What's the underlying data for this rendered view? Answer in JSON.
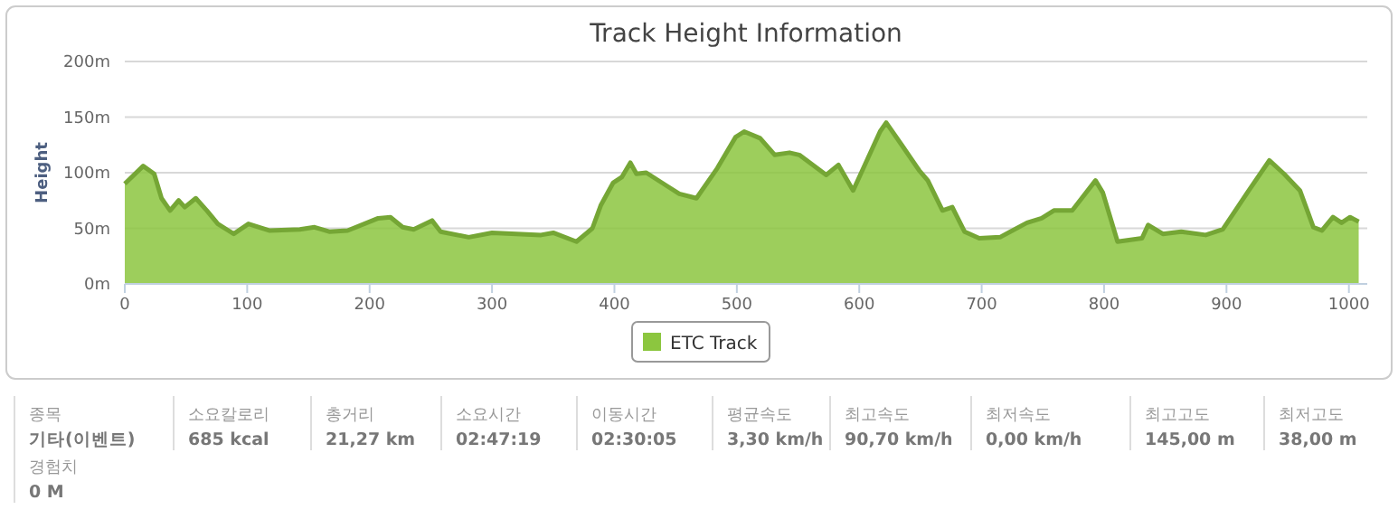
{
  "chart_data": [
    {
      "type": "area",
      "title": "Track Height Information",
      "ylabel": "Height",
      "legend": "bottom",
      "grid": "y",
      "xlim": [
        0,
        1015
      ],
      "xticks": [
        0,
        100,
        200,
        300,
        400,
        500,
        600,
        700,
        800,
        900,
        1000
      ],
      "ylim": [
        0,
        200
      ],
      "yticks": [
        {
          "value": 0,
          "label": "0m"
        },
        {
          "value": 50,
          "label": "50m"
        },
        {
          "value": 100,
          "label": "100m"
        },
        {
          "value": 150,
          "label": "150m"
        },
        {
          "value": 200,
          "label": "200m"
        }
      ],
      "series": [
        {
          "name": "ETC Track",
          "color": "#8cc63f",
          "x": [
            0,
            15,
            24,
            30,
            37,
            44,
            49,
            58,
            67,
            76,
            89,
            101,
            118,
            143,
            155,
            167,
            182,
            207,
            217,
            227,
            236,
            251,
            258,
            281,
            300,
            340,
            350,
            369,
            382,
            389,
            399,
            406,
            413,
            418,
            426,
            443,
            453,
            467,
            484,
            499,
            506,
            519,
            531,
            543,
            551,
            573,
            583,
            595,
            617,
            622,
            634,
            649,
            656,
            668,
            676,
            686,
            698,
            715,
            737,
            749,
            759,
            774,
            793,
            799,
            811,
            831,
            836,
            848,
            863,
            883,
            897,
            917,
            935,
            947,
            960,
            971,
            978,
            987,
            994,
            1001,
            1008
          ],
          "values": [
            90,
            106,
            99,
            77,
            66,
            75,
            69,
            77,
            66,
            54,
            45,
            54,
            48,
            49,
            51,
            47,
            48,
            59,
            60,
            51,
            49,
            57,
            47,
            42,
            46,
            44,
            46,
            38,
            50,
            71,
            91,
            96,
            109,
            99,
            100,
            88,
            81,
            77,
            104,
            132,
            137,
            131,
            116,
            118,
            116,
            98,
            107,
            84,
            137,
            145,
            126,
            102,
            93,
            66,
            69,
            47,
            41,
            42,
            55,
            59,
            66,
            66,
            93,
            82,
            38,
            41,
            53,
            45,
            47,
            44,
            49,
            82,
            111,
            99,
            84,
            51,
            48,
            60,
            55,
            60,
            56
          ]
        }
      ]
    },
    {
      "type": "other",
      "annotations": [
        "종목",
        "기타(이벤트)",
        "소요칼로리",
        "685 kcal",
        "총거리",
        "21,27 km",
        "소요시간",
        "02:47:19",
        "이동시간",
        "02:30:05",
        "평균속도",
        "3,30 km/h",
        "최고속도",
        "90,70 km/h",
        "최저속도",
        "0,00 km/h",
        "최고고도",
        "145,00 m",
        "최저고도",
        "38,00 m",
        "경험치",
        "0 M"
      ]
    }
  ]
}
